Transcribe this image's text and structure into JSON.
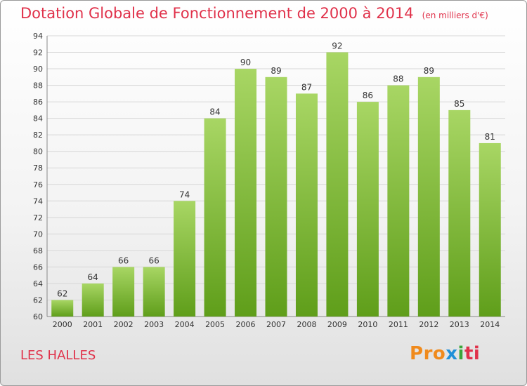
{
  "title": "Dotation Globale de Fonctionnement de 2000 à 2014",
  "subtitle": "(en milliers d'€)",
  "commune": "LES HALLES",
  "logo": {
    "text": "Proxiti",
    "letters": [
      "P",
      "r",
      "o",
      "x",
      "i",
      "t",
      "i"
    ],
    "colors": [
      "#f08a1c",
      "#f08a1c",
      "#f08a1c",
      "#1f8fd8",
      "#3aa63a",
      "#e0314a",
      "#e0314a"
    ]
  },
  "colors": {
    "title": "#e0314a",
    "bar_top": "#a8d664",
    "bar_bottom": "#5f9e1a",
    "grid": "#d7d7d7"
  },
  "chart_data": {
    "type": "bar",
    "categories": [
      "2000",
      "2001",
      "2002",
      "2003",
      "2004",
      "2005",
      "2006",
      "2007",
      "2008",
      "2009",
      "2010",
      "2011",
      "2012",
      "2013",
      "2014"
    ],
    "values": [
      62,
      64,
      66,
      66,
      74,
      84,
      90,
      89,
      87,
      92,
      86,
      88,
      89,
      85,
      81
    ],
    "ylim": [
      60,
      94
    ],
    "yticks": [
      60,
      62,
      64,
      66,
      68,
      70,
      72,
      74,
      76,
      78,
      80,
      82,
      84,
      86,
      88,
      90,
      92,
      94
    ],
    "grid": true,
    "data_labels": true
  }
}
